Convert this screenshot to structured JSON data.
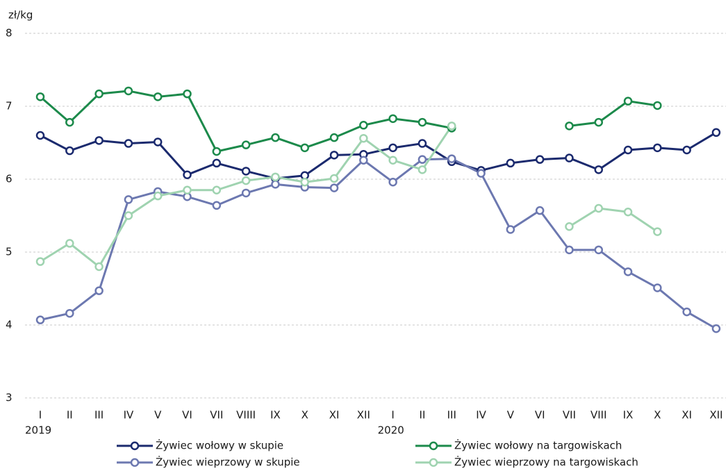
{
  "chart_data": {
    "type": "line",
    "y_label": "zł/kg",
    "categories": [
      "I",
      "II",
      "III",
      "IV",
      "V",
      "VI",
      "VII",
      "VIIII",
      "IX",
      "X",
      "XI",
      "XII",
      "I",
      "II",
      "III",
      "IV",
      "V",
      "VI",
      "VII",
      "VIII",
      "IX",
      "X",
      "XI",
      "XII"
    ],
    "x_groups": [
      {
        "label": "2019",
        "index": 0
      },
      {
        "label": "2020",
        "index": 12
      }
    ],
    "ylim": [
      3,
      8
    ],
    "yticks": [
      3,
      4,
      5,
      6,
      7,
      8
    ],
    "grid": true,
    "legend": "bottom",
    "series": [
      {
        "name": "Żywiec wołowy w skupie",
        "color": "#1b2a6e",
        "values": [
          6.6,
          6.39,
          6.53,
          6.49,
          6.51,
          6.06,
          6.22,
          6.11,
          6.01,
          6.05,
          6.33,
          6.34,
          6.43,
          6.49,
          6.24,
          6.12,
          6.22,
          6.27,
          6.29,
          6.13,
          6.4,
          6.43,
          6.4,
          6.64
        ]
      },
      {
        "name": "Żywiec wołowy na targowiskach",
        "color": "#1c8a4b",
        "values": [
          7.13,
          6.78,
          7.17,
          7.21,
          7.13,
          7.17,
          6.38,
          6.47,
          6.57,
          6.43,
          6.57,
          6.74,
          6.83,
          6.78,
          6.7,
          null,
          null,
          null,
          6.73,
          6.78,
          7.07,
          7.01,
          null,
          null
        ]
      },
      {
        "name": "Żywiec wieprzowy w skupie",
        "color": "#6c78b0",
        "values": [
          4.07,
          4.16,
          4.47,
          5.72,
          5.83,
          5.76,
          5.64,
          5.81,
          5.93,
          5.89,
          5.88,
          6.26,
          5.96,
          6.27,
          6.28,
          6.08,
          5.31,
          5.57,
          5.03,
          5.03,
          4.73,
          4.51,
          4.18,
          3.95
        ]
      },
      {
        "name": "Żywiec wieprzowy na targowiskach",
        "color": "#9fd3b0",
        "values": [
          4.87,
          5.12,
          4.8,
          5.5,
          5.77,
          5.85,
          5.85,
          5.98,
          6.03,
          5.96,
          6.01,
          6.56,
          6.26,
          6.13,
          6.73,
          null,
          null,
          null,
          5.35,
          5.6,
          5.55,
          5.28,
          null,
          null
        ]
      }
    ]
  }
}
